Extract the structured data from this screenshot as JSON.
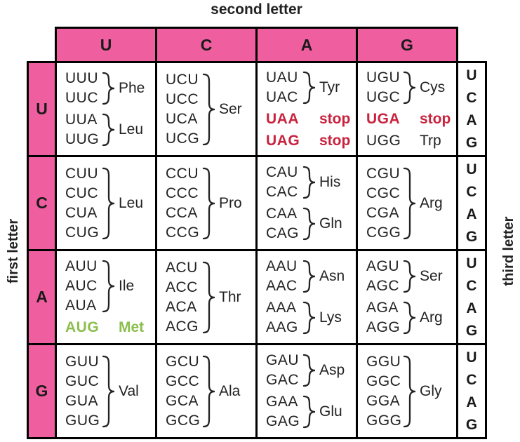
{
  "axis_labels": {
    "top": "second letter",
    "left": "first letter",
    "right": "third letter"
  },
  "second_letters": [
    "U",
    "C",
    "A",
    "G"
  ],
  "third_letters": [
    "U",
    "C",
    "A",
    "G"
  ],
  "colors": {
    "pink": "#EF5FA0",
    "red": "#C8233E",
    "green": "#8BBE4D",
    "line": "#000000",
    "text": "#222222"
  },
  "rows": [
    {
      "first_letter": "U",
      "cells": [
        {
          "groups": [
            {
              "codons": [
                "UUU",
                "UUC"
              ],
              "brace": true,
              "label": "Phe",
              "variant": "normal"
            },
            {
              "codons": [
                "UUA",
                "UUG"
              ],
              "brace": true,
              "label": "Leu",
              "variant": "normal"
            }
          ]
        },
        {
          "groups": [
            {
              "codons": [
                "UCU",
                "UCC",
                "UCA",
                "UCG"
              ],
              "brace": true,
              "label": "Ser",
              "variant": "normal"
            }
          ]
        },
        {
          "groups": [
            {
              "codons": [
                "UAU",
                "UAC"
              ],
              "brace": true,
              "label": "Tyr",
              "variant": "normal"
            },
            {
              "codons": [
                "UAA"
              ],
              "brace": false,
              "label": "stop",
              "variant": "stop"
            },
            {
              "codons": [
                "UAG"
              ],
              "brace": false,
              "label": "stop",
              "variant": "stop"
            }
          ]
        },
        {
          "groups": [
            {
              "codons": [
                "UGU",
                "UGC"
              ],
              "brace": true,
              "label": "Cys",
              "variant": "normal"
            },
            {
              "codons": [
                "UGA"
              ],
              "brace": false,
              "label": "stop",
              "variant": "stop"
            },
            {
              "codons": [
                "UGG"
              ],
              "brace": false,
              "label": "Trp",
              "variant": "normal"
            }
          ]
        }
      ]
    },
    {
      "first_letter": "C",
      "cells": [
        {
          "groups": [
            {
              "codons": [
                "CUU",
                "CUC",
                "CUA",
                "CUG"
              ],
              "brace": true,
              "label": "Leu",
              "variant": "normal"
            }
          ]
        },
        {
          "groups": [
            {
              "codons": [
                "CCU",
                "CCC",
                "CCA",
                "CCG"
              ],
              "brace": true,
              "label": "Pro",
              "variant": "normal"
            }
          ]
        },
        {
          "groups": [
            {
              "codons": [
                "CAU",
                "CAC"
              ],
              "brace": true,
              "label": "His",
              "variant": "normal"
            },
            {
              "codons": [
                "CAA",
                "CAG"
              ],
              "brace": true,
              "label": "Gln",
              "variant": "normal"
            }
          ]
        },
        {
          "groups": [
            {
              "codons": [
                "CGU",
                "CGC",
                "CGA",
                "CGG"
              ],
              "brace": true,
              "label": "Arg",
              "variant": "normal"
            }
          ]
        }
      ]
    },
    {
      "first_letter": "A",
      "cells": [
        {
          "groups": [
            {
              "codons": [
                "AUU",
                "AUC",
                "AUA"
              ],
              "brace": true,
              "label": "Ile",
              "variant": "normal"
            },
            {
              "codons": [
                "AUG"
              ],
              "brace": false,
              "label": "Met",
              "variant": "start"
            }
          ]
        },
        {
          "groups": [
            {
              "codons": [
                "ACU",
                "ACC",
                "ACA",
                "ACG"
              ],
              "brace": true,
              "label": "Thr",
              "variant": "normal"
            }
          ]
        },
        {
          "groups": [
            {
              "codons": [
                "AAU",
                "AAC"
              ],
              "brace": true,
              "label": "Asn",
              "variant": "normal"
            },
            {
              "codons": [
                "AAA",
                "AAG"
              ],
              "brace": true,
              "label": "Lys",
              "variant": "normal"
            }
          ]
        },
        {
          "groups": [
            {
              "codons": [
                "AGU",
                "AGC"
              ],
              "brace": true,
              "label": "Ser",
              "variant": "normal"
            },
            {
              "codons": [
                "AGA",
                "AGG"
              ],
              "brace": true,
              "label": "Arg",
              "variant": "normal"
            }
          ]
        }
      ]
    },
    {
      "first_letter": "G",
      "cells": [
        {
          "groups": [
            {
              "codons": [
                "GUU",
                "GUC",
                "GUA",
                "GUG"
              ],
              "brace": true,
              "label": "Val",
              "variant": "normal"
            }
          ]
        },
        {
          "groups": [
            {
              "codons": [
                "GCU",
                "GCC",
                "GCA",
                "GCG"
              ],
              "brace": true,
              "label": "Ala",
              "variant": "normal"
            }
          ]
        },
        {
          "groups": [
            {
              "codons": [
                "GAU",
                "GAC"
              ],
              "brace": true,
              "label": "Asp",
              "variant": "normal"
            },
            {
              "codons": [
                "GAA",
                "GAG"
              ],
              "brace": true,
              "label": "Glu",
              "variant": "normal"
            }
          ]
        },
        {
          "groups": [
            {
              "codons": [
                "GGU",
                "GGC",
                "GGA",
                "GGG"
              ],
              "brace": true,
              "label": "Gly",
              "variant": "normal"
            }
          ]
        }
      ]
    }
  ]
}
